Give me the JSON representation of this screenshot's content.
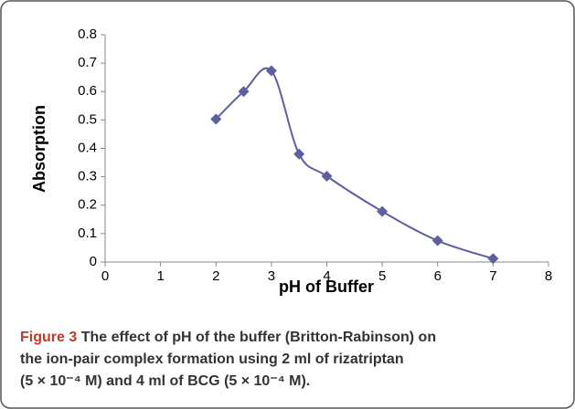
{
  "chart_data": {
    "type": "line",
    "x_label": "pH of Buffer",
    "y_label": "Absorption",
    "x": [
      2,
      2.5,
      3,
      3.5,
      4,
      5,
      6,
      7
    ],
    "series": [
      {
        "color": "#5d5f9f",
        "values": [
          0.503,
          0.6,
          0.673,
          0.38,
          0.302,
          0.178,
          0.075,
          0.012
        ]
      }
    ],
    "xlim": [
      0,
      8
    ],
    "xticks": [
      0,
      1,
      2,
      3,
      4,
      5,
      6,
      7,
      8
    ],
    "ylim": [
      0,
      0.8
    ],
    "yticks": [
      0,
      0.1,
      0.2,
      0.3,
      0.4,
      0.5,
      0.6,
      0.7,
      0.8
    ],
    "smooth": true,
    "marker": "diamond"
  },
  "caption": {
    "label": "Figure 3",
    "lines": [
      "The effect of pH of the buffer (Britton-Rabinson) on",
      "the ion-pair complex formation using 2 ml of rizatriptan",
      "(5 × 10⁻⁴ M) and 4 ml of BCG (5 × 10⁻⁴ M)."
    ]
  }
}
